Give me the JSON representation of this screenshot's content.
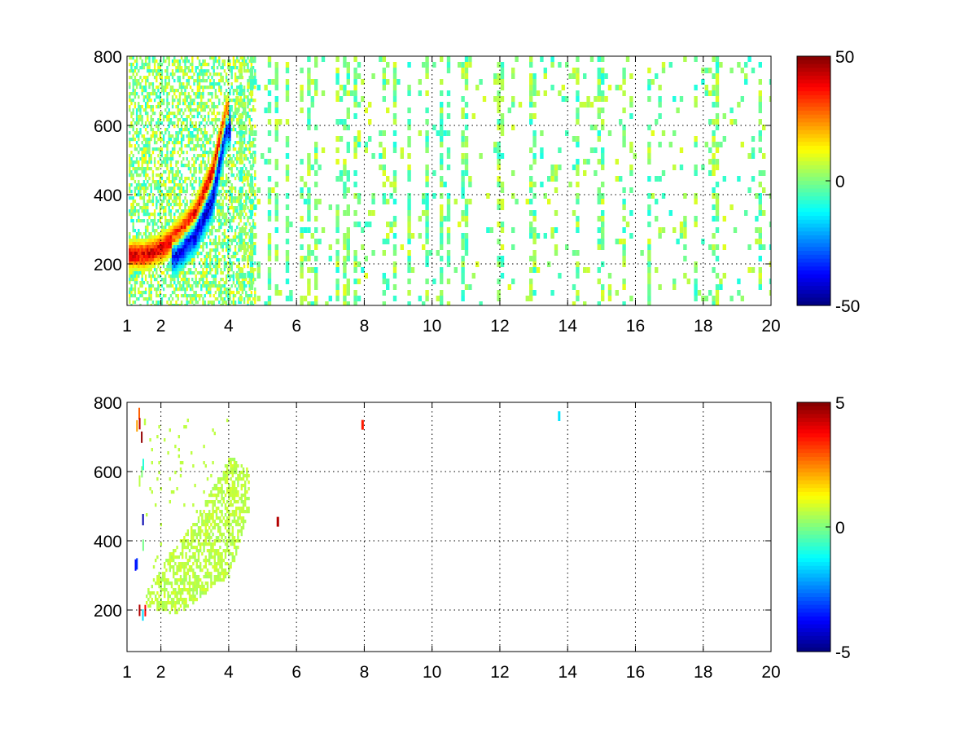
{
  "colors": {
    "axis": "#000000",
    "grid": "#000000",
    "background": "#ffffff",
    "colormap": "jet"
  },
  "chart_data": [
    {
      "type": "heatmap",
      "title": "",
      "xlabel": "",
      "ylabel": "",
      "xlim": [
        1,
        20
      ],
      "ylim": [
        80,
        800
      ],
      "grid": true,
      "xticks": [
        1,
        2,
        4,
        6,
        8,
        10,
        12,
        14,
        16,
        18,
        20
      ],
      "xtick_labels": [
        "1",
        "2",
        "4",
        "6",
        "8",
        "10",
        "12",
        "14",
        "16",
        "18",
        "20"
      ],
      "yticks": [
        200,
        400,
        600,
        800
      ],
      "ytick_labels": [
        "200",
        "400",
        "600",
        "800"
      ],
      "colorbar": {
        "min": -50,
        "max": 50,
        "ticks": [
          -50,
          0,
          50
        ],
        "tick_labels": [
          "-50",
          "0",
          "50"
        ],
        "colormap": "jet"
      },
      "features": [
        {
          "kind": "positive ridge",
          "x": [
            1.5,
            2.0,
            2.5,
            3.0,
            3.5,
            3.9
          ],
          "y": [
            230,
            250,
            290,
            350,
            470,
            640
          ],
          "value": 40
        },
        {
          "kind": "negative ridge",
          "x": [
            2.4,
            3.0,
            3.5,
            3.9
          ],
          "y": [
            230,
            290,
            390,
            600
          ],
          "value": -40
        },
        {
          "kind": "sparse columns",
          "x_range": [
            4.2,
            20
          ],
          "value_range": [
            -10,
            10
          ]
        }
      ]
    },
    {
      "type": "heatmap",
      "title": "",
      "xlabel": "",
      "ylabel": "",
      "xlim": [
        1,
        20
      ],
      "ylim": [
        80,
        800
      ],
      "grid": true,
      "xticks": [
        1,
        2,
        4,
        6,
        8,
        10,
        12,
        14,
        16,
        18,
        20
      ],
      "xtick_labels": [
        "1",
        "2",
        "4",
        "6",
        "8",
        "10",
        "12",
        "14",
        "16",
        "18",
        "20"
      ],
      "yticks": [
        200,
        400,
        600,
        800
      ],
      "ytick_labels": [
        "200",
        "400",
        "600",
        "800"
      ],
      "colorbar": {
        "min": -5,
        "max": 5,
        "ticks": [
          -5,
          0,
          5
        ],
        "tick_labels": [
          "-5",
          "0",
          "5"
        ],
        "colormap": "jet"
      },
      "features": [
        {
          "kind": "near-zero band",
          "x_range": [
            1.5,
            4.6
          ],
          "y_range": [
            190,
            760
          ],
          "value": 0.6
        },
        {
          "kind": "spike",
          "x": 5.45,
          "y": 455,
          "value": 4.5
        },
        {
          "kind": "spike",
          "x": 7.95,
          "y": 735,
          "value": 3.5
        },
        {
          "kind": "spike",
          "x": 13.75,
          "y": 760,
          "value": -1.5
        },
        {
          "kind": "spikes",
          "x": 1.4,
          "y_range": [
            100,
            780
          ],
          "value_range": [
            -5,
            5
          ]
        }
      ]
    }
  ]
}
